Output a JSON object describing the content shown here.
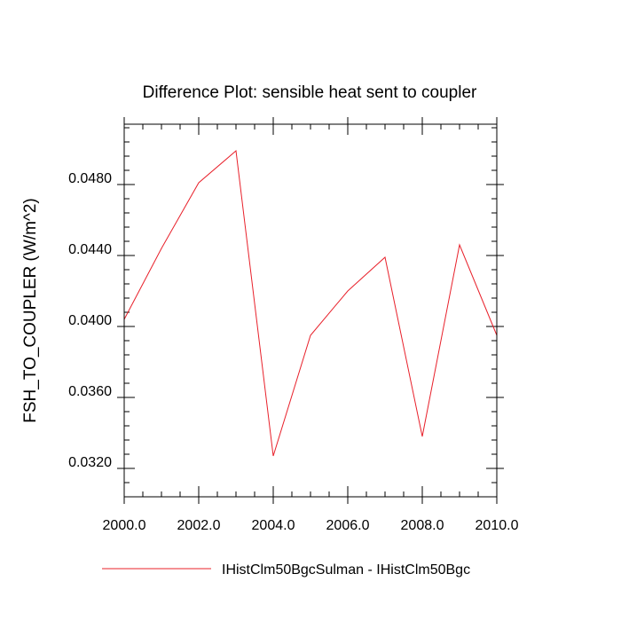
{
  "chart_data": {
    "type": "line",
    "title": "Difference Plot: sensible heat sent to coupler",
    "xlabel": "",
    "ylabel": "FSH_TO_COUPLER  (W/m^2)",
    "xlim": [
      2000,
      2010
    ],
    "ylim": [
      0.03,
      0.051
    ],
    "x_ticks": [
      "2000.0",
      "2002.0",
      "2004.0",
      "2006.0",
      "2008.0",
      "2010.0"
    ],
    "y_ticks": [
      "0.0320",
      "0.0360",
      "0.0400",
      "0.0440",
      "0.0480"
    ],
    "grid": false,
    "legend_position": "bottom",
    "series": [
      {
        "name": "IHistClm50BgcSulman - IHistClm50Bgc",
        "color": "#e8202a",
        "x": [
          2000,
          2001,
          2002,
          2003,
          2004,
          2005,
          2006,
          2007,
          2008,
          2009,
          2010
        ],
        "y": [
          0.04,
          0.044,
          0.0477,
          0.0495,
          0.0323,
          0.0391,
          0.0416,
          0.0435,
          0.0334,
          0.0442,
          0.0391
        ]
      }
    ]
  }
}
